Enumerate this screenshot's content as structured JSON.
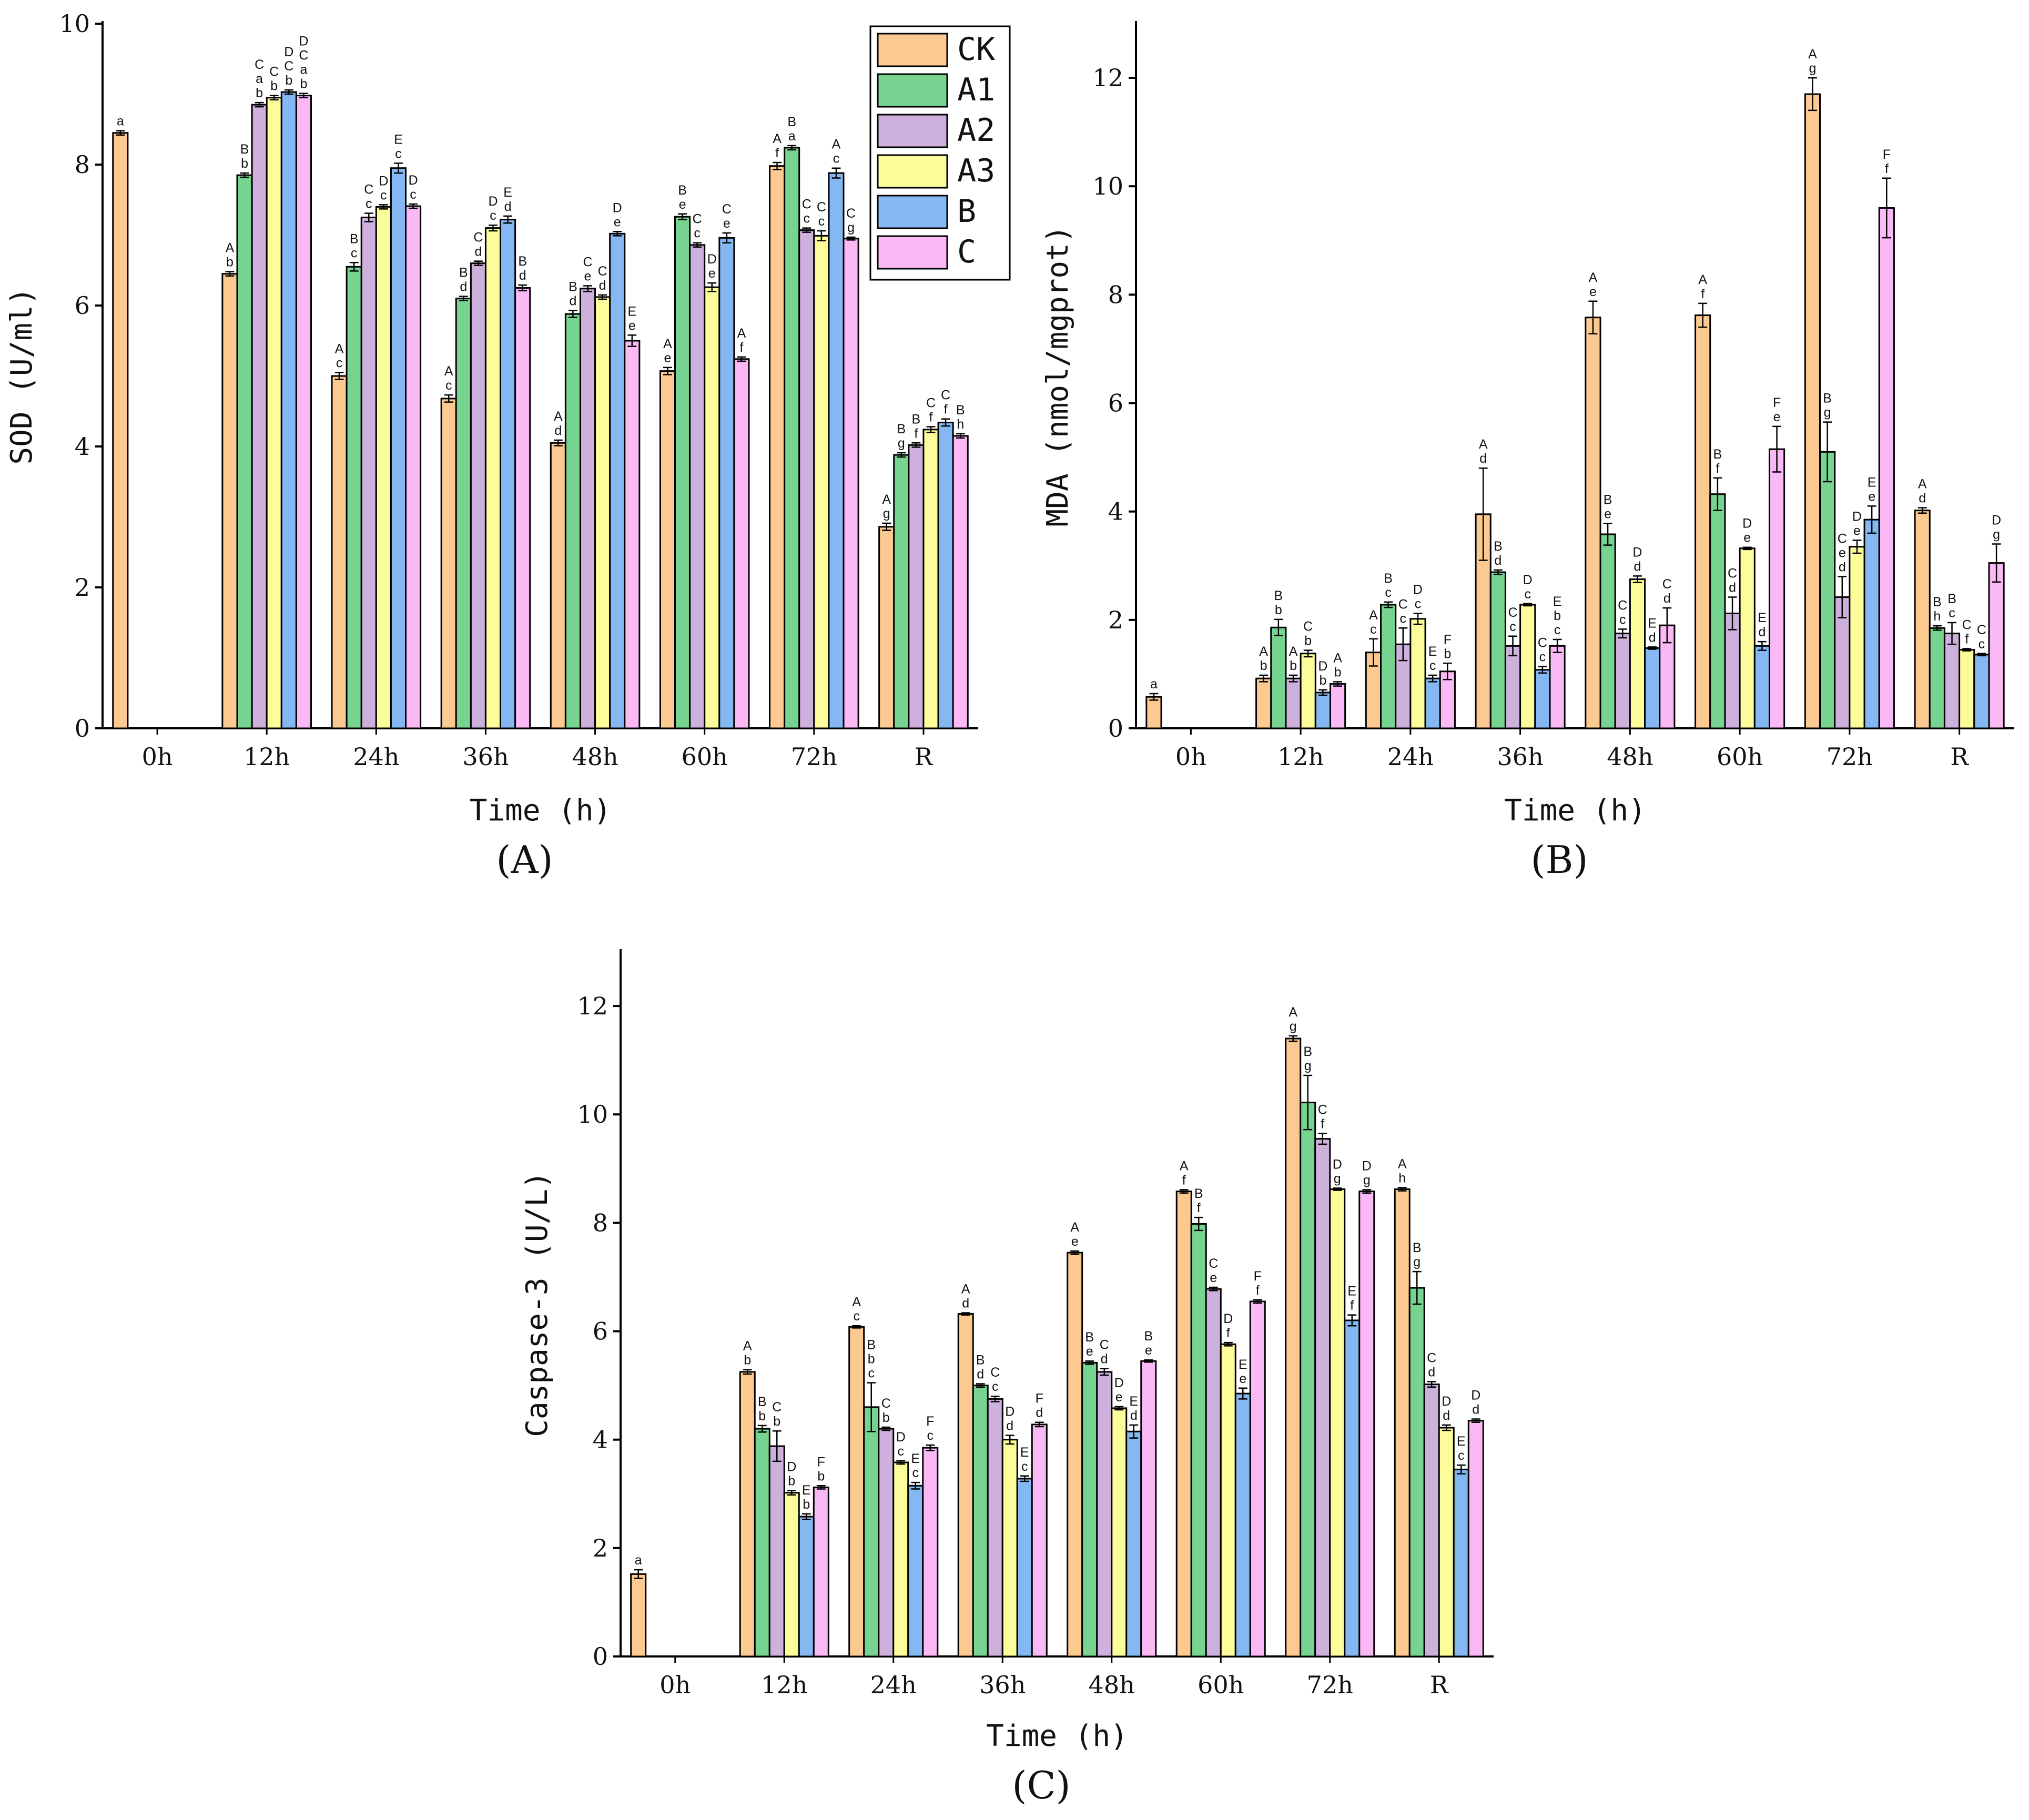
{
  "chart_data": [
    {
      "type": "bar",
      "panel_label": "(A)",
      "xlabel": "Time (h)",
      "ylabel": "SOD (U/ml)",
      "ylim": [
        0,
        10
      ],
      "yticks": [
        0,
        2,
        4,
        6,
        8,
        10
      ],
      "categories": [
        "0h",
        "12h",
        "24h",
        "36h",
        "48h",
        "60h",
        "72h",
        "R"
      ],
      "legend": {
        "placement": "top-right",
        "entries": [
          "CK",
          "A1",
          "A2",
          "A3",
          "B",
          "C"
        ]
      },
      "series": [
        {
          "name": "CK",
          "color": "#fcc990",
          "values": [
            8.45,
            6.45,
            5.0,
            4.68,
            4.05,
            5.07,
            7.98,
            2.86
          ],
          "errors": [
            0.03,
            0.03,
            0.05,
            0.05,
            0.04,
            0.05,
            0.05,
            0.05
          ],
          "labels": [
            "a",
            "A\nb",
            "A\nc",
            "A\nc",
            "A\nd",
            "A\ne",
            "A\nf",
            "A\ng"
          ]
        },
        {
          "name": "A1",
          "color": "#77d490",
          "values": [
            null,
            7.85,
            6.55,
            6.1,
            5.88,
            7.26,
            8.24,
            null
          ],
          "errors": [
            0,
            0.03,
            0.06,
            0.03,
            0.05,
            0.04,
            0.03,
            0
          ],
          "labels": [
            "",
            "B\nb",
            "B\nc",
            "B\nd",
            "B\nd",
            "B\ne",
            "B\na",
            ""
          ]
        },
        {
          "name": "A2",
          "color": "#cdb1dc",
          "values": [
            null,
            8.85,
            7.25,
            6.6,
            6.24,
            6.86,
            7.07,
            null
          ],
          "errors": [
            0,
            0.03,
            0.06,
            0.03,
            0.04,
            0.03,
            0.03,
            0
          ],
          "labels": [
            "",
            "C\na\nb",
            "C\nc",
            "C\nd",
            "C\ne",
            "C\nc",
            "C\nc",
            ""
          ]
        },
        {
          "name": "A3",
          "color": "#fcfc9b",
          "values": [
            null,
            8.95,
            7.4,
            7.1,
            6.12,
            6.26,
            6.99,
            null
          ],
          "errors": [
            0,
            0.03,
            0.03,
            0.04,
            0.03,
            0.06,
            0.07,
            0
          ],
          "labels": [
            "",
            "C\nb",
            "D\nc",
            "D\nc",
            "C\nd",
            "D\ne",
            "C\nc",
            ""
          ]
        },
        {
          "name": "B",
          "color": "#85b8f2",
          "values": [
            null,
            9.03,
            7.95,
            7.22,
            7.02,
            6.96,
            7.88,
            null
          ],
          "errors": [
            0,
            0.03,
            0.07,
            0.05,
            0.03,
            0.07,
            0.07,
            0
          ],
          "labels": [
            "",
            "D\nC\nb",
            "E\nc",
            "E\nd",
            "D\ne",
            "C\ne",
            "A\nc",
            ""
          ]
        },
        {
          "name": "C",
          "color": "#fab8f5",
          "values": [
            null,
            8.98,
            7.41,
            6.25,
            5.5,
            5.24,
            6.95,
            null
          ],
          "errors": [
            0,
            0.03,
            0.03,
            0.04,
            0.08,
            0.03,
            0.02,
            0
          ],
          "labels": [
            "",
            "D\nC\na\nb",
            "D\nc",
            "B\nd",
            "E\ne",
            "A\nf",
            "C\ng",
            ""
          ]
        }
      ],
      "r_group": {
        "category": "R",
        "values": [
          2.86,
          3.88,
          4.02,
          4.24,
          4.34,
          4.15
        ],
        "errors": [
          0.05,
          0.03,
          0.03,
          0.04,
          0.05,
          0.03
        ],
        "labels": [
          "A\ng",
          "B\ng",
          "B\nf",
          "C\nf",
          "C\nf",
          "B\nh"
        ]
      }
    },
    {
      "type": "bar",
      "panel_label": "(B)",
      "xlabel": "Time (h)",
      "ylabel": "MDA (nmol/mgprot)",
      "ylim": [
        0,
        13
      ],
      "yticks": [
        0,
        2,
        4,
        6,
        8,
        10,
        12
      ],
      "categories": [
        "0h",
        "12h",
        "24h",
        "36h",
        "48h",
        "60h",
        "72h",
        "R"
      ],
      "series": [
        {
          "name": "CK",
          "values": [
            0.58,
            0.92,
            1.4,
            3.95,
            7.58,
            7.62,
            11.7,
            4.02
          ],
          "errors": [
            0.06,
            0.06,
            0.25,
            0.85,
            0.3,
            0.22,
            0.3,
            0.05
          ],
          "labels": [
            "a",
            "A\nb",
            "A\nc",
            "A\nd",
            "A\ne",
            "A\nf",
            "A\ng",
            "A\nd"
          ]
        },
        {
          "name": "A1",
          "values": [
            null,
            1.86,
            2.28,
            2.88,
            3.58,
            4.32,
            5.1,
            1.85
          ],
          "errors": [
            0,
            0.15,
            0.05,
            0.04,
            0.2,
            0.3,
            0.55,
            0.04
          ],
          "labels": [
            "",
            "B\nb",
            "B\nc",
            "B\nd",
            "B\ne",
            "B\nf",
            "B\ng",
            "B\nh"
          ]
        },
        {
          "name": "A2",
          "values": [
            null,
            0.92,
            1.55,
            1.52,
            1.75,
            2.12,
            2.42,
            1.75
          ],
          "errors": [
            0,
            0.06,
            0.3,
            0.18,
            0.08,
            0.3,
            0.38,
            0.2
          ],
          "labels": [
            "",
            "A\nb",
            "C\nc",
            "C\nc",
            "C\nc",
            "C\nd",
            "C\ne\nd",
            "B\nc"
          ]
        },
        {
          "name": "A3",
          "values": [
            null,
            1.38,
            2.02,
            2.28,
            2.75,
            3.32,
            3.35,
            1.45
          ],
          "errors": [
            0,
            0.06,
            0.1,
            0.02,
            0.06,
            0.02,
            0.12,
            0.02
          ],
          "labels": [
            "",
            "C\nb",
            "D\nc",
            "D\nc",
            "D\nd",
            "D\ne",
            "D\ne",
            "C\nf"
          ]
        },
        {
          "name": "B",
          "values": [
            null,
            0.66,
            0.92,
            1.08,
            1.48,
            1.52,
            3.85,
            1.36
          ],
          "errors": [
            0,
            0.05,
            0.06,
            0.06,
            0.02,
            0.08,
            0.25,
            0.02
          ],
          "labels": [
            "",
            "D\nb",
            "E\nc",
            "C\nc",
            "E\nd",
            "E\nd",
            "E\ne",
            "C\nc"
          ]
        },
        {
          "name": "C",
          "values": [
            null,
            0.82,
            1.05,
            1.52,
            1.9,
            5.15,
            9.6,
            3.05
          ],
          "errors": [
            0,
            0.04,
            0.15,
            0.12,
            0.32,
            0.42,
            0.55,
            0.35
          ],
          "labels": [
            "",
            "A\nb",
            "F\nb",
            "E\nb\nc",
            "C\nd",
            "F\ne",
            "F\nf",
            "D\ng"
          ]
        }
      ]
    },
    {
      "type": "bar",
      "panel_label": "(C)",
      "xlabel": "Time (h)",
      "ylabel": "Caspase-3 (U/L)",
      "ylim": [
        0,
        13
      ],
      "yticks": [
        0,
        2,
        4,
        6,
        8,
        10,
        12
      ],
      "categories": [
        "0h",
        "12h",
        "24h",
        "36h",
        "48h",
        "60h",
        "72h",
        "R"
      ],
      "series": [
        {
          "name": "CK",
          "values": [
            1.52,
            5.25,
            6.08,
            6.32,
            7.45,
            8.58,
            11.4,
            8.62
          ],
          "errors": [
            0.08,
            0.04,
            0.02,
            0.02,
            0.03,
            0.03,
            0.05,
            0.03
          ],
          "labels": [
            "a",
            "A\nb",
            "A\nc",
            "A\nd",
            "A\ne",
            "A\nf",
            "A\ng",
            "A\nh"
          ]
        },
        {
          "name": "A1",
          "values": [
            null,
            4.2,
            4.6,
            5.0,
            5.42,
            7.98,
            10.22,
            6.8
          ],
          "errors": [
            0,
            0.06,
            0.45,
            0.03,
            0.03,
            0.12,
            0.5,
            0.3
          ],
          "labels": [
            "",
            "B\nb",
            "B\nb\nc",
            "B\nd",
            "B\ne",
            "B\nf",
            "B\ng",
            "B\ng"
          ]
        },
        {
          "name": "A2",
          "values": [
            null,
            3.88,
            4.2,
            4.75,
            5.25,
            6.78,
            9.55,
            5.02
          ],
          "errors": [
            0,
            0.28,
            0.03,
            0.05,
            0.06,
            0.03,
            0.1,
            0.05
          ],
          "labels": [
            "",
            "C\nb",
            "C\nb",
            "C\nc",
            "C\nd",
            "C\ne",
            "C\nf",
            "C\nd"
          ]
        },
        {
          "name": "A3",
          "values": [
            null,
            3.02,
            3.58,
            4.0,
            4.58,
            5.76,
            8.62,
            4.22
          ],
          "errors": [
            0,
            0.04,
            0.03,
            0.08,
            0.03,
            0.03,
            0.02,
            0.05
          ],
          "labels": [
            "",
            "D\nb",
            "D\nc",
            "D\nd",
            "D\ne",
            "D\nf",
            "D\ng",
            "D\nd"
          ]
        },
        {
          "name": "B",
          "values": [
            null,
            2.58,
            3.15,
            3.28,
            4.15,
            4.85,
            6.2,
            3.45
          ],
          "errors": [
            0,
            0.05,
            0.06,
            0.05,
            0.12,
            0.1,
            0.1,
            0.08
          ],
          "labels": [
            "",
            "E\nb",
            "E\nc",
            "E\nc",
            "E\nd",
            "E\ne",
            "E\nf",
            "E\nc"
          ]
        },
        {
          "name": "C",
          "values": [
            null,
            3.12,
            3.85,
            4.28,
            5.45,
            6.55,
            8.58,
            4.35
          ],
          "errors": [
            0,
            0.03,
            0.05,
            0.04,
            0.02,
            0.03,
            0.03,
            0.03
          ],
          "labels": [
            "",
            "F\nb",
            "F\nc",
            "F\nd",
            "B\ne",
            "F\nf",
            "D\ng",
            "D\nd"
          ]
        }
      ]
    }
  ]
}
